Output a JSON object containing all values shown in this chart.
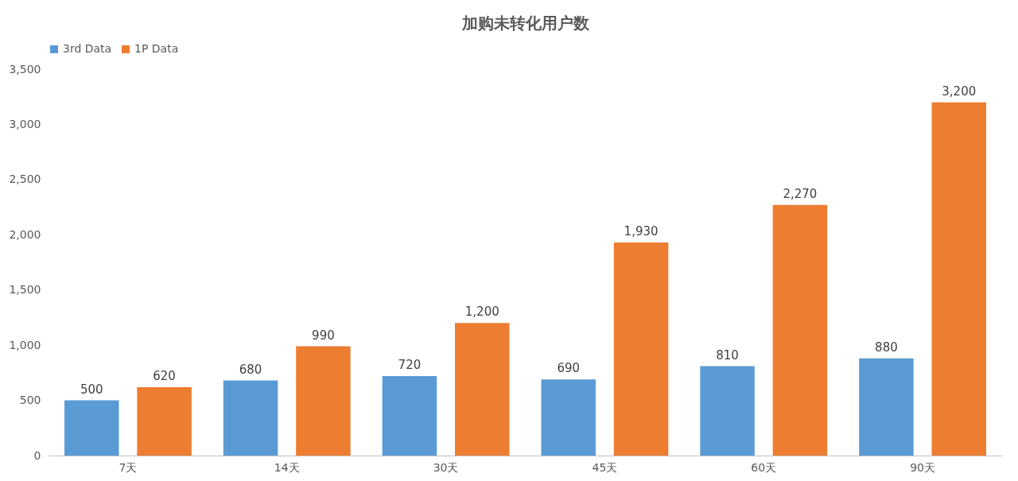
{
  "chart_data": {
    "type": "bar",
    "title": "加购未转化用户数",
    "categories": [
      "7天",
      "14天",
      "30天",
      "45天",
      "60天",
      "90天"
    ],
    "series": [
      {
        "name": "3rd Data",
        "color": "#5b9bd5",
        "values": [
          500,
          680,
          720,
          690,
          810,
          880
        ],
        "value_labels": [
          "500",
          "680",
          "720",
          "690",
          "810",
          "880"
        ]
      },
      {
        "name": "1P Data",
        "color": "#ed7d31",
        "values": [
          620,
          990,
          1200,
          1930,
          2270,
          3200
        ],
        "value_labels": [
          "620",
          "990",
          "1,200",
          "1,930",
          "2,270",
          "3,200"
        ]
      }
    ],
    "ylim": [
      0,
      3500
    ],
    "yticks": [
      {
        "value": 0,
        "label": "0"
      },
      {
        "value": 500,
        "label": "500"
      },
      {
        "value": 1000,
        "label": "1,000"
      },
      {
        "value": 1500,
        "label": "1,500"
      },
      {
        "value": 2000,
        "label": "2,000"
      },
      {
        "value": 2500,
        "label": "2,500"
      },
      {
        "value": 3000,
        "label": "3,000"
      },
      {
        "value": 3500,
        "label": "3,500"
      }
    ],
    "grid": false,
    "legend": "top"
  }
}
